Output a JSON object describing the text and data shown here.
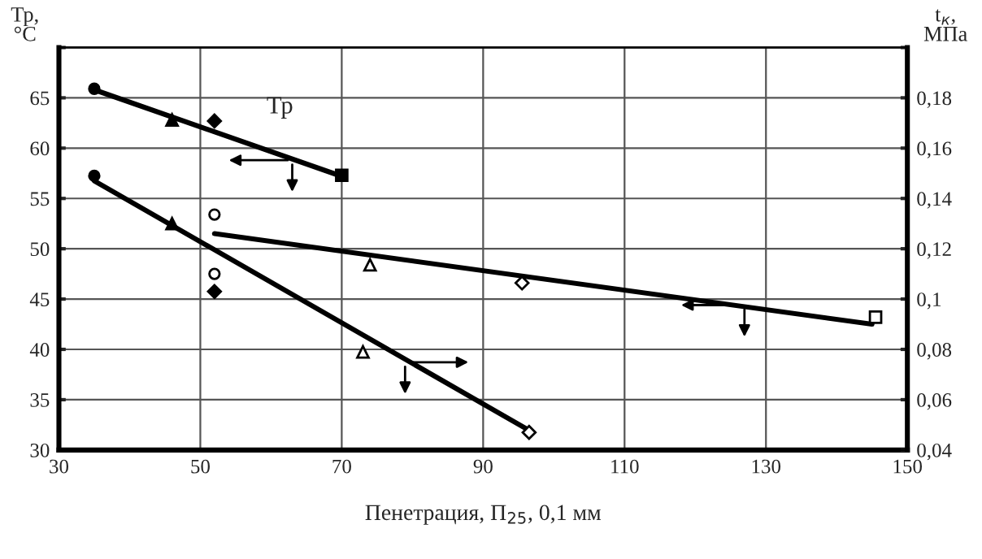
{
  "chart_data": {
    "type": "scatter",
    "xlabel": "Пенетрация, П$_{25}$, 0,1 мм",
    "ylabel": "Тр,\n°С",
    "y2label": "t$_{к}$,\nМПа",
    "xlim": [
      30,
      150
    ],
    "xticks": [
      30,
      50,
      70,
      90,
      110,
      130,
      150
    ],
    "ylim": [
      30,
      70
    ],
    "yticks": [
      30,
      35,
      40,
      45,
      50,
      55,
      60,
      65,
      {
        "value": 70,
        "label": null
      }
    ],
    "y2lim": [
      0.04,
      0.2
    ],
    "y2ticks": [
      {
        "value": 0.04,
        "label": "0,04"
      },
      {
        "value": 0.06,
        "label": "0,06"
      },
      {
        "value": 0.08,
        "label": "0,08"
      },
      {
        "value": 0.1,
        "label": "0,1"
      },
      {
        "value": 0.12,
        "label": "0,12"
      },
      {
        "value": 0.14,
        "label": "0,14"
      },
      {
        "value": 0.16,
        "label": "0,16"
      },
      {
        "value": 0.18,
        "label": "0,18"
      },
      {
        "value": 0.2,
        "label": null
      }
    ],
    "grid": true,
    "series": [
      {
        "type": "line",
        "name": "Тр",
        "color": "#000000",
        "x": [
          35,
          70
        ],
        "values": [
          65.8,
          57.2
        ]
      },
      {
        "type": "line",
        "color": "#000000",
        "x": [
          52,
          145
        ],
        "values": [
          51.5,
          42.5
        ]
      },
      {
        "type": "line",
        "axis": "y2",
        "color": "#000000",
        "x": [
          35,
          97
        ],
        "values": [
          0.147,
          0.047
        ]
      },
      {
        "marker": "circle",
        "color": "#000000",
        "x": [
          35
        ],
        "values": [
          65.9
        ]
      },
      {
        "marker": "triangle",
        "color": "#000000",
        "x": [
          46
        ],
        "values": [
          62.8
        ]
      },
      {
        "marker": "diamond",
        "color": "#000000",
        "x": [
          52
        ],
        "values": [
          62.7
        ]
      },
      {
        "marker": "square",
        "color": "#000000",
        "x": [
          70
        ],
        "values": [
          57.3
        ]
      },
      {
        "marker": "circle",
        "color": "#ffffff",
        "x": [
          52
        ],
        "values": [
          53.4
        ]
      },
      {
        "marker": "triangle",
        "color": "#ffffff",
        "x": [
          74
        ],
        "values": [
          48.4
        ]
      },
      {
        "marker": "diamond",
        "color": "#ffffff",
        "x": [
          95.5
        ],
        "values": [
          46.6
        ]
      },
      {
        "marker": "square",
        "color": "#ffffff",
        "x": [
          145.5
        ],
        "values": [
          43.2
        ]
      },
      {
        "axis": "y2",
        "marker": "circle",
        "color": "#000000",
        "x": [
          35
        ],
        "values": [
          0.149
        ]
      },
      {
        "axis": "y2",
        "marker": "triangle",
        "color": "#000000",
        "x": [
          46
        ],
        "values": [
          0.13
        ]
      },
      {
        "axis": "y2",
        "marker": "diamond",
        "color": "#000000",
        "x": [
          52
        ],
        "values": [
          0.103
        ]
      },
      {
        "axis": "y2",
        "marker": "circle",
        "color": "#ffffff",
        "x": [
          52
        ],
        "values": [
          0.11
        ]
      },
      {
        "axis": "y2",
        "marker": "triangle",
        "color": "#ffffff",
        "x": [
          73
        ],
        "values": [
          0.079
        ]
      },
      {
        "axis": "y2",
        "marker": "diamond",
        "color": "#ffffff",
        "x": [
          96.5
        ],
        "values": [
          0.047
        ]
      }
    ]
  }
}
